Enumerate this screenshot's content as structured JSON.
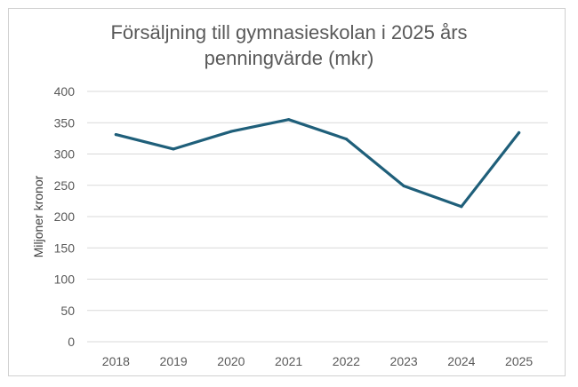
{
  "chart_data": {
    "type": "line",
    "title_lines": [
      "Försäljning till gymnasieskolan i 2025 års",
      "penningvärde (mkr)"
    ],
    "xlabel": "",
    "ylabel": "Miljoner kronor",
    "categories": [
      "2018",
      "2019",
      "2020",
      "2021",
      "2022",
      "2023",
      "2024",
      "2025"
    ],
    "series": [
      {
        "values": [
          331,
          308,
          336,
          355,
          324,
          249,
          216,
          334
        ]
      }
    ],
    "ylim": [
      0,
      400
    ],
    "yticks": [
      "0",
      "50",
      "100",
      "150",
      "200",
      "250",
      "300",
      "350",
      "400"
    ],
    "grid": true,
    "legend": "none",
    "line_color": "#1f5f7a",
    "grid_color": "#d9d9d9"
  }
}
